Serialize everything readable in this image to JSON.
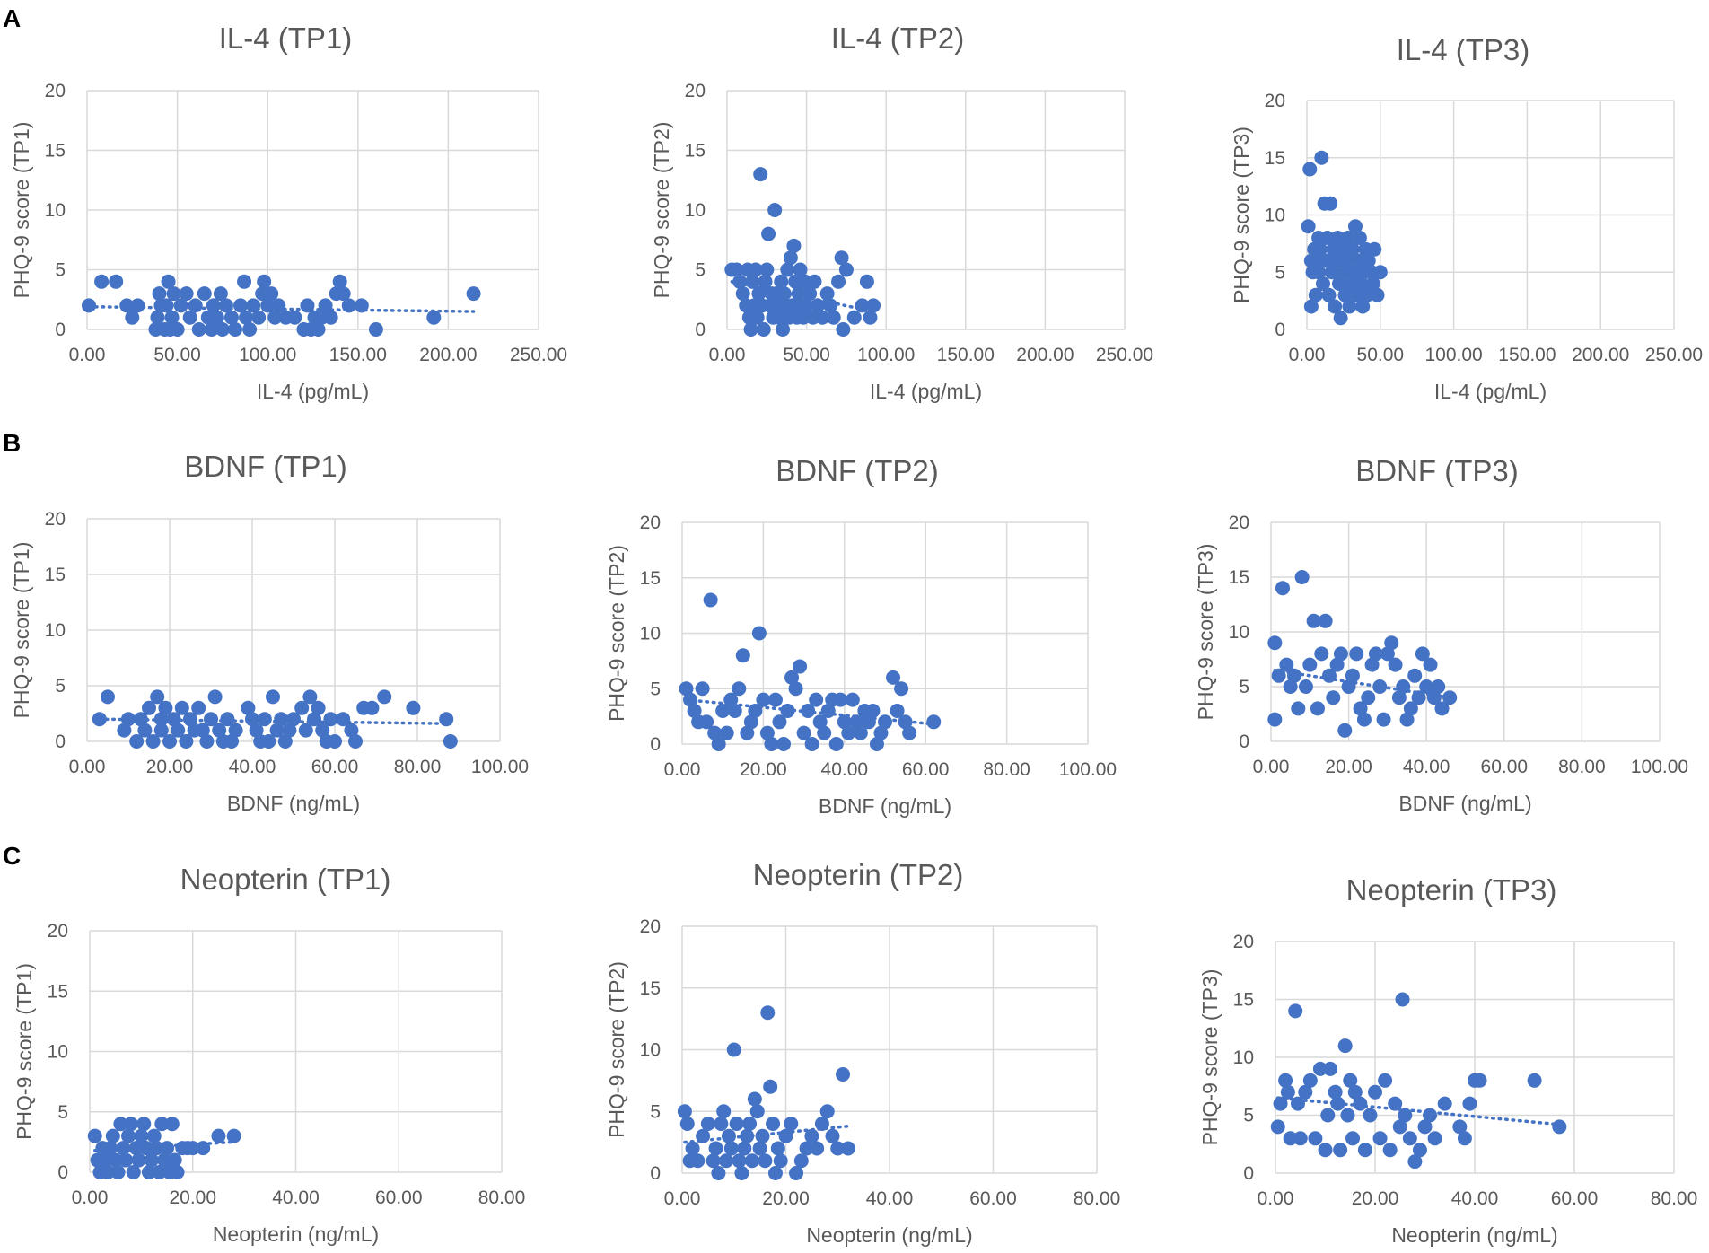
{
  "figure": {
    "panel_labels": [
      "A",
      "B",
      "C"
    ]
  },
  "style": {
    "point_color": "#4472c4",
    "grid_color": "#d9d9d9",
    "text_color": "#595959"
  },
  "chart_data": [
    {
      "type": "scatter",
      "title": "IL-4 (TP1)",
      "xlabel": "IL-4 (pg/mL)",
      "ylabel": "PHQ-9 score (TP1)",
      "xlim": [
        0,
        250
      ],
      "ylim": [
        0,
        20
      ],
      "xticks": [
        "0.00",
        "50.00",
        "100.00",
        "150.00",
        "200.00",
        "250.00"
      ],
      "yticks": [
        "0",
        "5",
        "10",
        "15",
        "20"
      ],
      "x": [
        1,
        8,
        16,
        22,
        25,
        28,
        38,
        39,
        40,
        41,
        43,
        44,
        45,
        46,
        47,
        48,
        50,
        52,
        55,
        57,
        60,
        62,
        65,
        67,
        69,
        70,
        72,
        74,
        75,
        77,
        80,
        82,
        85,
        87,
        88,
        90,
        92,
        95,
        97,
        98,
        100,
        102,
        104,
        106,
        110,
        115,
        120,
        122,
        124,
        126,
        128,
        130,
        132,
        135,
        138,
        140,
        142,
        145,
        152,
        160,
        192,
        214
      ],
      "y": [
        2,
        4,
        4,
        2,
        1,
        2,
        0,
        1,
        3,
        2,
        0,
        2,
        4,
        0,
        1,
        3,
        0,
        2,
        3,
        1,
        2,
        0,
        3,
        1,
        0,
        2,
        1,
        3,
        0,
        2,
        1,
        0,
        2,
        4,
        1,
        0,
        2,
        1,
        3,
        4,
        2,
        3,
        1,
        2,
        1,
        1,
        0,
        2,
        0,
        1,
        0,
        1,
        2,
        1,
        3,
        4,
        3,
        2,
        2,
        0,
        1,
        3
      ],
      "trend": [
        1.9,
        1.5
      ]
    },
    {
      "type": "scatter",
      "title": "IL-4 (TP2)",
      "xlabel": "IL-4 (pg/mL)",
      "ylabel": "PHQ-9 score (TP2)",
      "xlim": [
        0,
        250
      ],
      "ylim": [
        0,
        20
      ],
      "xticks": [
        "0.00",
        "50.00",
        "100.00",
        "150.00",
        "200.00",
        "250.00"
      ],
      "yticks": [
        "0",
        "5",
        "10",
        "15",
        "20"
      ],
      "x": [
        3,
        6,
        8,
        10,
        12,
        13,
        14,
        15,
        16,
        17,
        18,
        19,
        20,
        21,
        22,
        23,
        24,
        25,
        26,
        27,
        28,
        29,
        30,
        31,
        32,
        33,
        34,
        35,
        36,
        37,
        38,
        39,
        40,
        41,
        42,
        43,
        44,
        45,
        46,
        47,
        48,
        49,
        50,
        52,
        54,
        55,
        57,
        60,
        63,
        65,
        67,
        70,
        72,
        73,
        75,
        80,
        85,
        88,
        90,
        92
      ],
      "y": [
        5,
        5,
        4,
        3,
        2,
        5,
        1,
        0,
        4,
        2,
        5,
        1,
        3,
        13,
        2,
        0,
        4,
        5,
        8,
        2,
        3,
        1,
        10,
        3,
        2,
        1,
        4,
        0,
        3,
        2,
        5,
        1,
        6,
        2,
        7,
        4,
        1,
        3,
        5,
        2,
        1,
        4,
        2,
        3,
        1,
        4,
        2,
        1,
        3,
        2,
        1,
        4,
        6,
        0,
        5,
        1,
        2,
        4,
        1,
        2
      ],
      "trend": [
        4.0,
        1.5
      ]
    },
    {
      "type": "scatter",
      "title": "IL-4 (TP3)",
      "xlabel": "IL-4 (pg/mL)",
      "ylabel": "PHQ-9 score (TP3)",
      "xlim": [
        0,
        250
      ],
      "ylim": [
        0,
        20
      ],
      "xticks": [
        "0.00",
        "50.00",
        "100.00",
        "150.00",
        "200.00",
        "250.00"
      ],
      "yticks": [
        "0",
        "5",
        "10",
        "15",
        "20"
      ],
      "x": [
        1,
        2,
        3,
        3,
        4,
        5,
        6,
        7,
        8,
        8,
        9,
        10,
        11,
        12,
        13,
        14,
        15,
        16,
        17,
        18,
        19,
        20,
        21,
        22,
        23,
        24,
        25,
        26,
        27,
        28,
        29,
        30,
        31,
        32,
        33,
        34,
        35,
        36,
        37,
        38,
        39,
        40,
        41,
        42,
        44,
        45,
        46,
        48,
        50
      ],
      "y": [
        9,
        14,
        6,
        2,
        5,
        7,
        3,
        6,
        5,
        8,
        7,
        15,
        4,
        11,
        6,
        8,
        3,
        11,
        5,
        7,
        2,
        6,
        8,
        4,
        1,
        7,
        5,
        3,
        6,
        8,
        2,
        4,
        7,
        5,
        9,
        3,
        6,
        8,
        4,
        2,
        5,
        7,
        3,
        6,
        5,
        4,
        7,
        3,
        5
      ],
      "trend": [
        6.0,
        5.0
      ]
    },
    {
      "type": "scatter",
      "title": "BDNF (TP1)",
      "xlabel": "BDNF (ng/mL)",
      "ylabel": "PHQ-9 score (TP1)",
      "xlim": [
        0,
        100
      ],
      "ylim": [
        0,
        20
      ],
      "xticks": [
        "0.00",
        "20.00",
        "40.00",
        "60.00",
        "80.00",
        "100.00"
      ],
      "yticks": [
        "0",
        "5",
        "10",
        "15",
        "20"
      ],
      "x": [
        3,
        5,
        9,
        10,
        12,
        13,
        14,
        15,
        16,
        17,
        18,
        18,
        19,
        20,
        21,
        22,
        23,
        24,
        25,
        26,
        27,
        28,
        29,
        30,
        31,
        32,
        33,
        34,
        35,
        36,
        39,
        40,
        41,
        42,
        43,
        44,
        45,
        46,
        47,
        48,
        49,
        50,
        52,
        53,
        54,
        55,
        56,
        57,
        58,
        59,
        60,
        62,
        64,
        65,
        67,
        69,
        72,
        79,
        87,
        88
      ],
      "y": [
        2,
        4,
        1,
        2,
        0,
        2,
        1,
        3,
        0,
        4,
        2,
        1,
        3,
        0,
        2,
        1,
        3,
        0,
        2,
        1,
        3,
        1,
        0,
        2,
        4,
        1,
        0,
        2,
        0,
        1,
        3,
        2,
        1,
        0,
        2,
        0,
        4,
        1,
        2,
        0,
        1,
        2,
        3,
        1,
        4,
        2,
        3,
        1,
        0,
        2,
        0,
        2,
        1,
        0,
        3,
        3,
        4,
        3,
        2,
        0
      ],
      "trend": [
        2.0,
        1.6
      ]
    },
    {
      "type": "scatter",
      "title": "BDNF (TP2)",
      "xlabel": "BDNF (ng/mL)",
      "ylabel": "PHQ-9 score (TP2)",
      "xlim": [
        0,
        100
      ],
      "ylim": [
        0,
        20
      ],
      "xticks": [
        "0.00",
        "20.00",
        "40.00",
        "60.00",
        "80.00",
        "100.00"
      ],
      "yticks": [
        "0",
        "5",
        "10",
        "15",
        "20"
      ],
      "x": [
        1,
        2,
        3,
        4,
        5,
        6,
        7,
        8,
        9,
        10,
        11,
        12,
        13,
        14,
        15,
        16,
        17,
        18,
        19,
        20,
        21,
        22,
        23,
        24,
        25,
        26,
        27,
        28,
        29,
        30,
        31,
        32,
        33,
        34,
        35,
        36,
        37,
        38,
        39,
        40,
        41,
        42,
        43,
        44,
        45,
        46,
        47,
        48,
        49,
        50,
        52,
        53,
        54,
        55,
        56,
        62
      ],
      "y": [
        5,
        4,
        3,
        2,
        5,
        2,
        13,
        1,
        0,
        3,
        1,
        4,
        3,
        5,
        8,
        1,
        2,
        3,
        10,
        4,
        1,
        0,
        4,
        2,
        0,
        3,
        6,
        5,
        7,
        1,
        3,
        0,
        4,
        2,
        1,
        3,
        4,
        0,
        4,
        2,
        1,
        4,
        2,
        1,
        3,
        2,
        3,
        0,
        1,
        2,
        6,
        3,
        5,
        2,
        1,
        2
      ],
      "trend": [
        4.0,
        1.8
      ]
    },
    {
      "type": "scatter",
      "title": "BDNF (TP3)",
      "xlabel": "BDNF (ng/mL)",
      "ylabel": "PHQ-9 score (TP3)",
      "xlim": [
        0,
        100
      ],
      "ylim": [
        0,
        20
      ],
      "xticks": [
        "0.00",
        "20.00",
        "40.00",
        "60.00",
        "80.00",
        "100.00"
      ],
      "yticks": [
        "0",
        "5",
        "10",
        "15",
        "20"
      ],
      "x": [
        1,
        1,
        2,
        3,
        4,
        5,
        6,
        7,
        8,
        9,
        10,
        11,
        12,
        13,
        14,
        15,
        16,
        17,
        18,
        19,
        20,
        21,
        22,
        23,
        24,
        25,
        26,
        27,
        28,
        29,
        30,
        31,
        32,
        33,
        34,
        35,
        36,
        37,
        38,
        39,
        40,
        41,
        42,
        43,
        44,
        46
      ],
      "y": [
        9,
        2,
        6,
        14,
        7,
        5,
        6,
        3,
        15,
        5,
        7,
        11,
        3,
        8,
        11,
        6,
        4,
        7,
        8,
        1,
        5,
        6,
        8,
        3,
        2,
        4,
        7,
        8,
        5,
        2,
        8,
        9,
        7,
        4,
        5,
        2,
        3,
        6,
        4,
        8,
        5,
        7,
        4,
        5,
        3,
        4
      ],
      "trend": [
        6.5,
        4.0
      ]
    },
    {
      "type": "scatter",
      "title": "Neopterin (TP1)",
      "xlabel": "Neopterin (ng/mL)",
      "ylabel": "PHQ-9 score (TP1)",
      "xlim": [
        0,
        80
      ],
      "ylim": [
        0,
        20
      ],
      "xticks": [
        "0.00",
        "20.00",
        "40.00",
        "60.00",
        "80.00"
      ],
      "yticks": [
        "0",
        "5",
        "10",
        "15",
        "20"
      ],
      "x": [
        1,
        1.5,
        2,
        2.5,
        3,
        3.5,
        4,
        4.5,
        5,
        5.5,
        6,
        6.5,
        7,
        7.5,
        8,
        8.5,
        9,
        9.5,
        10,
        10.5,
        11,
        11.5,
        12,
        12.5,
        13,
        13.5,
        14,
        14.5,
        15,
        15.5,
        16,
        16.5,
        17,
        18,
        19,
        20,
        22,
        25,
        28
      ],
      "y": [
        3,
        1,
        0,
        2,
        1,
        0,
        2,
        3,
        1,
        0,
        4,
        2,
        1,
        3,
        4,
        0,
        2,
        1,
        3,
        4,
        2,
        0,
        1,
        3,
        2,
        0,
        4,
        1,
        2,
        0,
        4,
        1,
        0,
        2,
        2,
        2,
        2,
        3,
        3
      ],
      "trend": [
        1.8,
        2.5
      ]
    },
    {
      "type": "scatter",
      "title": "Neopterin (TP2)",
      "xlabel": "Neopterin (ng/mL)",
      "ylabel": "PHQ-9 score (TP2)",
      "xlim": [
        0,
        80
      ],
      "ylim": [
        0,
        20
      ],
      "xticks": [
        "0.00",
        "20.00",
        "40.00",
        "60.00",
        "80.00"
      ],
      "yticks": [
        "0",
        "5",
        "10",
        "15",
        "20"
      ],
      "x": [
        0.5,
        1,
        1.5,
        2,
        3,
        4,
        5,
        6,
        6.5,
        7,
        7.5,
        8,
        8.5,
        9,
        9.5,
        10,
        10.5,
        11,
        11.5,
        12,
        12.5,
        13,
        13.5,
        14,
        14.5,
        15,
        15.5,
        16,
        16.5,
        17,
        17.5,
        18,
        18.5,
        19,
        20,
        21,
        22,
        23,
        24,
        25,
        26,
        27,
        28,
        29,
        30,
        31,
        32
      ],
      "y": [
        5,
        4,
        1,
        2,
        1,
        3,
        4,
        1,
        2,
        0,
        4,
        5,
        1,
        3,
        2,
        10,
        4,
        1,
        0,
        2,
        3,
        4,
        1,
        6,
        5,
        2,
        3,
        1,
        13,
        7,
        4,
        0,
        2,
        1,
        3,
        4,
        0,
        1,
        2,
        3,
        2,
        4,
        5,
        3,
        2,
        8,
        2
      ],
      "trend": [
        2.5,
        3.8
      ]
    },
    {
      "type": "scatter",
      "title": "Neopterin (TP3)",
      "xlabel": "Neopterin (ng/mL)",
      "ylabel": "PHQ-9 score (TP3)",
      "xlim": [
        0,
        80
      ],
      "ylim": [
        0,
        20
      ],
      "xticks": [
        "0.00",
        "20.00",
        "40.00",
        "60.00",
        "80.00"
      ],
      "yticks": [
        "0",
        "5",
        "10",
        "15",
        "20"
      ],
      "x": [
        0.5,
        1,
        2,
        2.5,
        3,
        4,
        4.5,
        5,
        6,
        7,
        8,
        9,
        10,
        10.5,
        11,
        12,
        12.5,
        13,
        14,
        14.5,
        15,
        15.5,
        16,
        17,
        18,
        19,
        20,
        21,
        22,
        23,
        24,
        25,
        25.5,
        26,
        27,
        28,
        29,
        30,
        31,
        32,
        34,
        37,
        38,
        39,
        40,
        41,
        52,
        57
      ],
      "y": [
        4,
        6,
        8,
        7,
        3,
        14,
        6,
        3,
        7,
        8,
        3,
        9,
        2,
        5,
        9,
        7,
        6,
        2,
        11,
        5,
        8,
        3,
        7,
        6,
        2,
        5,
        7,
        3,
        8,
        2,
        6,
        4,
        15,
        5,
        3,
        1,
        2,
        4,
        5,
        3,
        6,
        4,
        3,
        6,
        8,
        8,
        8,
        4
      ],
      "trend": [
        6.5,
        4.2
      ]
    }
  ]
}
